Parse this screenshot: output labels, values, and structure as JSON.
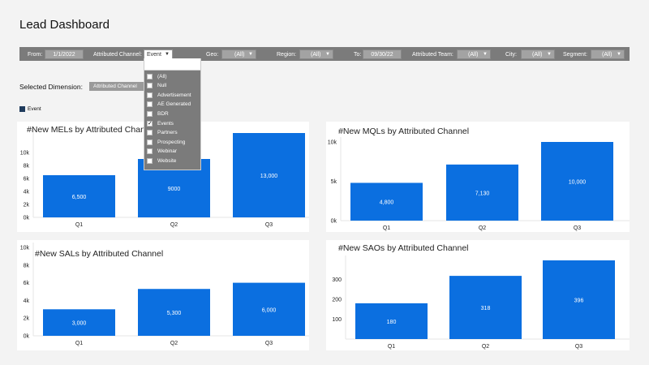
{
  "page": {
    "title": "Lead Dashboard"
  },
  "filters": {
    "from": {
      "label": "From:",
      "value": "1/1/2022"
    },
    "channel": {
      "label": "Attributed Channel:",
      "value": "Event"
    },
    "geo": {
      "label": "Geo:",
      "value": "(All)"
    },
    "region": {
      "label": "Region:",
      "value": "(All)"
    },
    "to": {
      "label": "To:",
      "value": "09/30/22"
    },
    "team": {
      "label": "Attributed Team:",
      "value": "(All)"
    },
    "city": {
      "label": "City:",
      "value": "(All)"
    },
    "segment": {
      "label": "Segment:",
      "value": "(All)"
    }
  },
  "selected_dimension": {
    "label": "Selected Dimension:",
    "value": "Attributed Channel"
  },
  "legend": {
    "label": "Event",
    "color": "#1f3b5c"
  },
  "dropdown": {
    "items": [
      {
        "label": "(All)",
        "checked": false
      },
      {
        "label": "Null",
        "checked": false
      },
      {
        "label": "Advertisement",
        "checked": false
      },
      {
        "label": "AE Generated",
        "checked": false
      },
      {
        "label": "BDR",
        "checked": false
      },
      {
        "label": "Events",
        "checked": true
      },
      {
        "label": "Partners",
        "checked": false
      },
      {
        "label": "Prospecting",
        "checked": false
      },
      {
        "label": "Webinar",
        "checked": false
      },
      {
        "label": "Website",
        "checked": false
      }
    ]
  },
  "colors": {
    "bar": "#0b6fe0"
  },
  "chart_data": [
    {
      "type": "bar",
      "title": "#New MELs by Attributed Channel",
      "categories": [
        "Q1",
        "Q2",
        "Q3"
      ],
      "values": [
        6500,
        9000,
        13000
      ],
      "value_labels": [
        "6,500",
        "9000",
        "13,000"
      ],
      "ylim": [
        0,
        13000
      ],
      "yticks": [
        0,
        2000,
        4000,
        6000,
        8000,
        10000
      ],
      "ytick_labels": [
        "0k",
        "2k",
        "4k",
        "6k",
        "8k",
        "10k"
      ]
    },
    {
      "type": "bar",
      "title": "#New MQLs by Attributed Channel",
      "categories": [
        "Q1",
        "Q2",
        "Q3"
      ],
      "values": [
        4800,
        7130,
        10000
      ],
      "value_labels": [
        "4,800",
        "7,130",
        "10,000"
      ],
      "ylim": [
        0,
        10000
      ],
      "yticks": [
        0,
        5000,
        10000
      ],
      "ytick_labels": [
        "0k",
        "5k",
        "10k"
      ]
    },
    {
      "type": "bar",
      "title": "#New SALs by Attributed Channel",
      "categories": [
        "Q1",
        "Q2",
        "Q3"
      ],
      "values": [
        3000,
        5300,
        6000
      ],
      "value_labels": [
        "3,000",
        "5,300",
        "6,000"
      ],
      "ylim": [
        0,
        10000
      ],
      "yticks": [
        0,
        2000,
        4000,
        6000,
        8000,
        10000
      ],
      "ytick_labels": [
        "0k",
        "2k",
        "4k",
        "6k",
        "8k",
        "10k"
      ]
    },
    {
      "type": "bar",
      "title": "#New SAOs by Attributed Channel",
      "categories": [
        "Q1",
        "Q2",
        "Q3"
      ],
      "values": [
        180,
        318,
        396
      ],
      "value_labels": [
        "180",
        "318",
        "396"
      ],
      "ylim": [
        0,
        396
      ],
      "yticks": [
        100,
        200,
        300
      ],
      "ytick_labels": [
        "100",
        "200",
        "300"
      ]
    }
  ]
}
